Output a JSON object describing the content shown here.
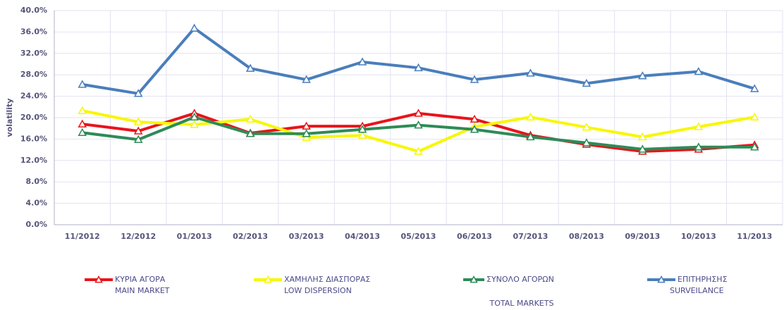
{
  "chart_data": {
    "type": "line",
    "y_label": "volatility",
    "categories": [
      "11/2012",
      "12/2012",
      "01/2013",
      "02/2013",
      "03/2013",
      "04/2013",
      "05/2013",
      "06/2013",
      "07/2013",
      "08/2013",
      "09/2013",
      "10/2013",
      "11/2013"
    ],
    "series": [
      {
        "name": [
          "ΚΥΡΙΑ ΑΓΟΡΑ",
          "MAIN MARKET"
        ],
        "color": "#e8141a",
        "values": [
          18.8,
          17.5,
          20.8,
          17.1,
          18.4,
          18.4,
          20.8,
          19.7,
          16.7,
          15.0,
          13.7,
          14.1,
          14.9
        ]
      },
      {
        "name": [
          "ΧΑΜΗΛΗΣ ΔΙΑΣΠΟΡΑΣ",
          "LOW DISPERSION"
        ],
        "color": "#f7f700",
        "values": [
          21.3,
          19.2,
          18.7,
          19.7,
          16.3,
          16.7,
          13.7,
          18.3,
          20.1,
          18.2,
          16.4,
          18.3,
          20.1
        ]
      },
      {
        "name": [
          "ΣΥΝΟΛΟ ΑΓΟΡΩΝ",
          "TOTAL MARKETS"
        ],
        "color": "#2e8b57",
        "values": [
          17.2,
          15.9,
          20.1,
          17.0,
          17.0,
          17.8,
          18.6,
          17.8,
          16.4,
          15.3,
          14.1,
          14.5,
          14.5
        ]
      },
      {
        "name": [
          "ΕΠΙΤΗΡΗΣΗΣ",
          "SURVEILANCE"
        ],
        "color": "#4a7ebb",
        "values": [
          26.2,
          24.5,
          36.7,
          29.2,
          27.1,
          30.4,
          29.3,
          27.1,
          28.3,
          26.4,
          27.8,
          28.6,
          25.4
        ]
      }
    ],
    "ylim": [
      0,
      40
    ],
    "yticks": [
      {
        "value": 0,
        "label": "0.0%"
      },
      {
        "value": 4,
        "label": "4.0%"
      },
      {
        "value": 8,
        "label": "8.0%"
      },
      {
        "value": 12,
        "label": "12.0%"
      },
      {
        "value": 16,
        "label": "16.0%"
      },
      {
        "value": 20,
        "label": "20.0%"
      },
      {
        "value": 24,
        "label": "24.0%"
      },
      {
        "value": 28,
        "label": "28.0%"
      },
      {
        "value": 32,
        "label": "32.0%"
      },
      {
        "value": 36,
        "label": "36.0%"
      },
      {
        "value": 40,
        "label": "40.0%"
      }
    ],
    "grid": true,
    "legend": "bottom"
  }
}
